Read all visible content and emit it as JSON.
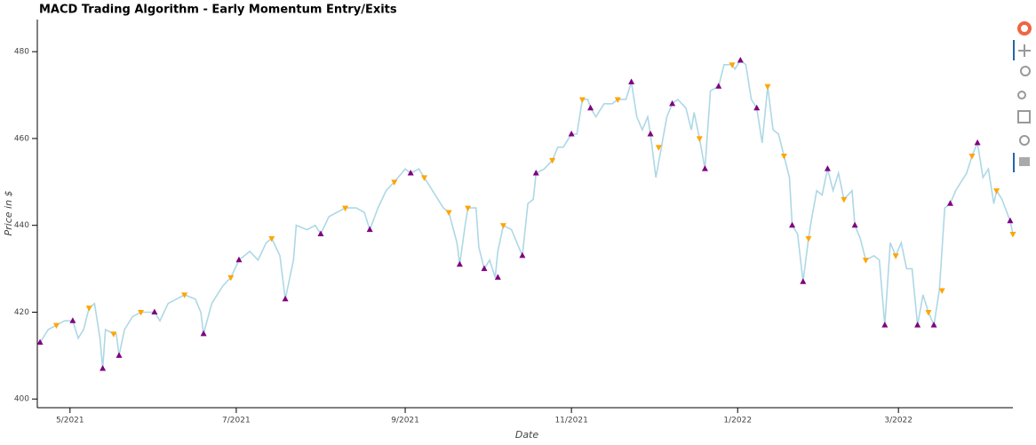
{
  "chart_data": {
    "type": "line",
    "title": "MACD Trading Algorithm - Early Momentum Entry/Exits",
    "x_label": "Date",
    "y_label": "Price in $",
    "xlim": [
      -12,
      346
    ],
    "ylim": [
      398,
      487.4
    ],
    "xticks": [
      {
        "value": 0,
        "label": "5/2021"
      },
      {
        "value": 61,
        "label": "7/2021"
      },
      {
        "value": 123,
        "label": "9/2021"
      },
      {
        "value": 184,
        "label": "11/2021"
      },
      {
        "value": 245,
        "label": "1/2022"
      },
      {
        "value": 304,
        "label": "3/2022"
      }
    ],
    "yticks": [
      400,
      420,
      440,
      460,
      480
    ],
    "x": [
      -11,
      -8,
      -5,
      -2,
      1,
      3,
      5,
      7,
      9,
      11,
      12,
      13,
      16,
      17,
      18,
      20,
      23,
      26,
      31,
      33,
      36,
      39,
      42,
      46,
      48,
      49,
      52,
      56,
      59,
      62,
      66,
      69,
      72,
      74,
      77,
      79,
      82,
      83,
      87,
      90,
      92,
      95,
      98,
      101,
      105,
      108,
      110,
      113,
      116,
      119,
      123,
      125,
      128,
      130,
      132,
      135,
      137,
      139,
      142,
      143,
      145,
      146,
      149,
      150,
      152,
      154,
      156,
      157,
      159,
      162,
      164,
      166,
      168,
      170,
      171,
      174,
      177,
      179,
      181,
      184,
      186,
      188,
      190,
      191,
      193,
      196,
      199,
      201,
      204,
      206,
      208,
      210,
      212,
      213,
      215,
      217,
      219,
      221,
      223,
      226,
      228,
      229,
      231,
      233,
      235,
      238,
      240,
      243,
      244,
      246,
      248,
      250,
      252,
      254,
      256,
      258,
      260,
      262,
      264,
      265,
      267,
      269,
      271,
      272,
      274,
      276,
      278,
      280,
      282,
      284,
      287,
      288,
      290,
      292,
      295,
      297,
      299,
      301,
      303,
      305,
      307,
      309,
      311,
      313,
      315,
      317,
      319,
      321,
      323,
      325,
      327,
      329,
      331,
      333,
      335,
      337,
      339,
      340,
      342,
      345,
      346
    ],
    "series": [
      {
        "color": "#add8e6",
        "values": [
          413,
          416,
          417,
          418,
          418,
          414,
          416,
          421,
          422,
          414,
          407,
          416,
          415,
          415,
          410,
          416,
          419,
          420,
          420,
          418,
          422,
          423,
          424,
          423,
          420,
          415,
          422,
          426,
          428,
          432,
          434,
          432,
          436,
          437,
          433,
          423,
          432,
          440,
          439,
          440,
          438,
          442,
          443,
          444,
          444,
          443,
          439,
          444,
          448,
          450,
          453,
          452,
          453,
          451,
          449,
          446,
          444,
          443,
          436,
          431,
          440,
          444,
          444,
          435,
          430,
          432,
          428,
          434,
          440,
          439,
          436,
          433,
          445,
          446,
          452,
          453,
          455,
          458,
          458,
          461,
          461,
          469,
          469,
          467,
          465,
          468,
          468,
          469,
          469,
          473,
          465,
          462,
          465,
          461,
          451,
          458,
          465,
          468,
          469,
          467,
          462,
          466,
          460,
          453,
          471,
          472,
          477,
          477,
          476,
          478,
          477,
          469,
          467,
          459,
          472,
          462,
          461,
          456,
          451,
          440,
          438,
          427,
          437,
          441,
          448,
          447,
          453,
          448,
          452,
          446,
          448,
          440,
          437,
          432,
          433,
          432,
          417,
          436,
          433,
          436,
          430,
          430,
          417,
          424,
          420,
          417,
          425,
          444,
          445,
          448,
          450,
          452,
          456,
          459,
          451,
          453,
          445,
          448,
          446,
          441,
          438
        ]
      }
    ],
    "entries": {
      "color": "#800080",
      "x": [
        -11,
        1,
        12,
        18,
        31,
        49,
        62,
        79,
        92,
        110,
        125,
        143,
        152,
        157,
        166,
        171,
        184,
        191,
        206,
        213,
        221,
        233,
        238,
        246,
        252,
        265,
        269,
        278,
        288,
        299,
        311,
        317,
        323,
        333,
        345
      ],
      "values": [
        413,
        418,
        407,
        410,
        420,
        415,
        432,
        423,
        438,
        439,
        452,
        431,
        430,
        428,
        433,
        452,
        461,
        467,
        473,
        461,
        468,
        453,
        472,
        478,
        467,
        440,
        427,
        453,
        440,
        417,
        417,
        417,
        445,
        459,
        441
      ]
    },
    "exits": {
      "color": "#ffa500",
      "x": [
        -5,
        7,
        16,
        26,
        42,
        59,
        74,
        101,
        119,
        130,
        139,
        146,
        159,
        177,
        188,
        201,
        216,
        231,
        243,
        256,
        262,
        271,
        284,
        292,
        303,
        315,
        320,
        331,
        340,
        346
      ],
      "values": [
        417,
        421,
        415,
        420,
        424,
        428,
        437,
        444,
        450,
        451,
        443,
        444,
        440,
        455,
        469,
        469,
        458,
        460,
        477,
        472,
        456,
        437,
        446,
        432,
        433,
        420,
        425,
        456,
        448,
        438
      ]
    }
  }
}
